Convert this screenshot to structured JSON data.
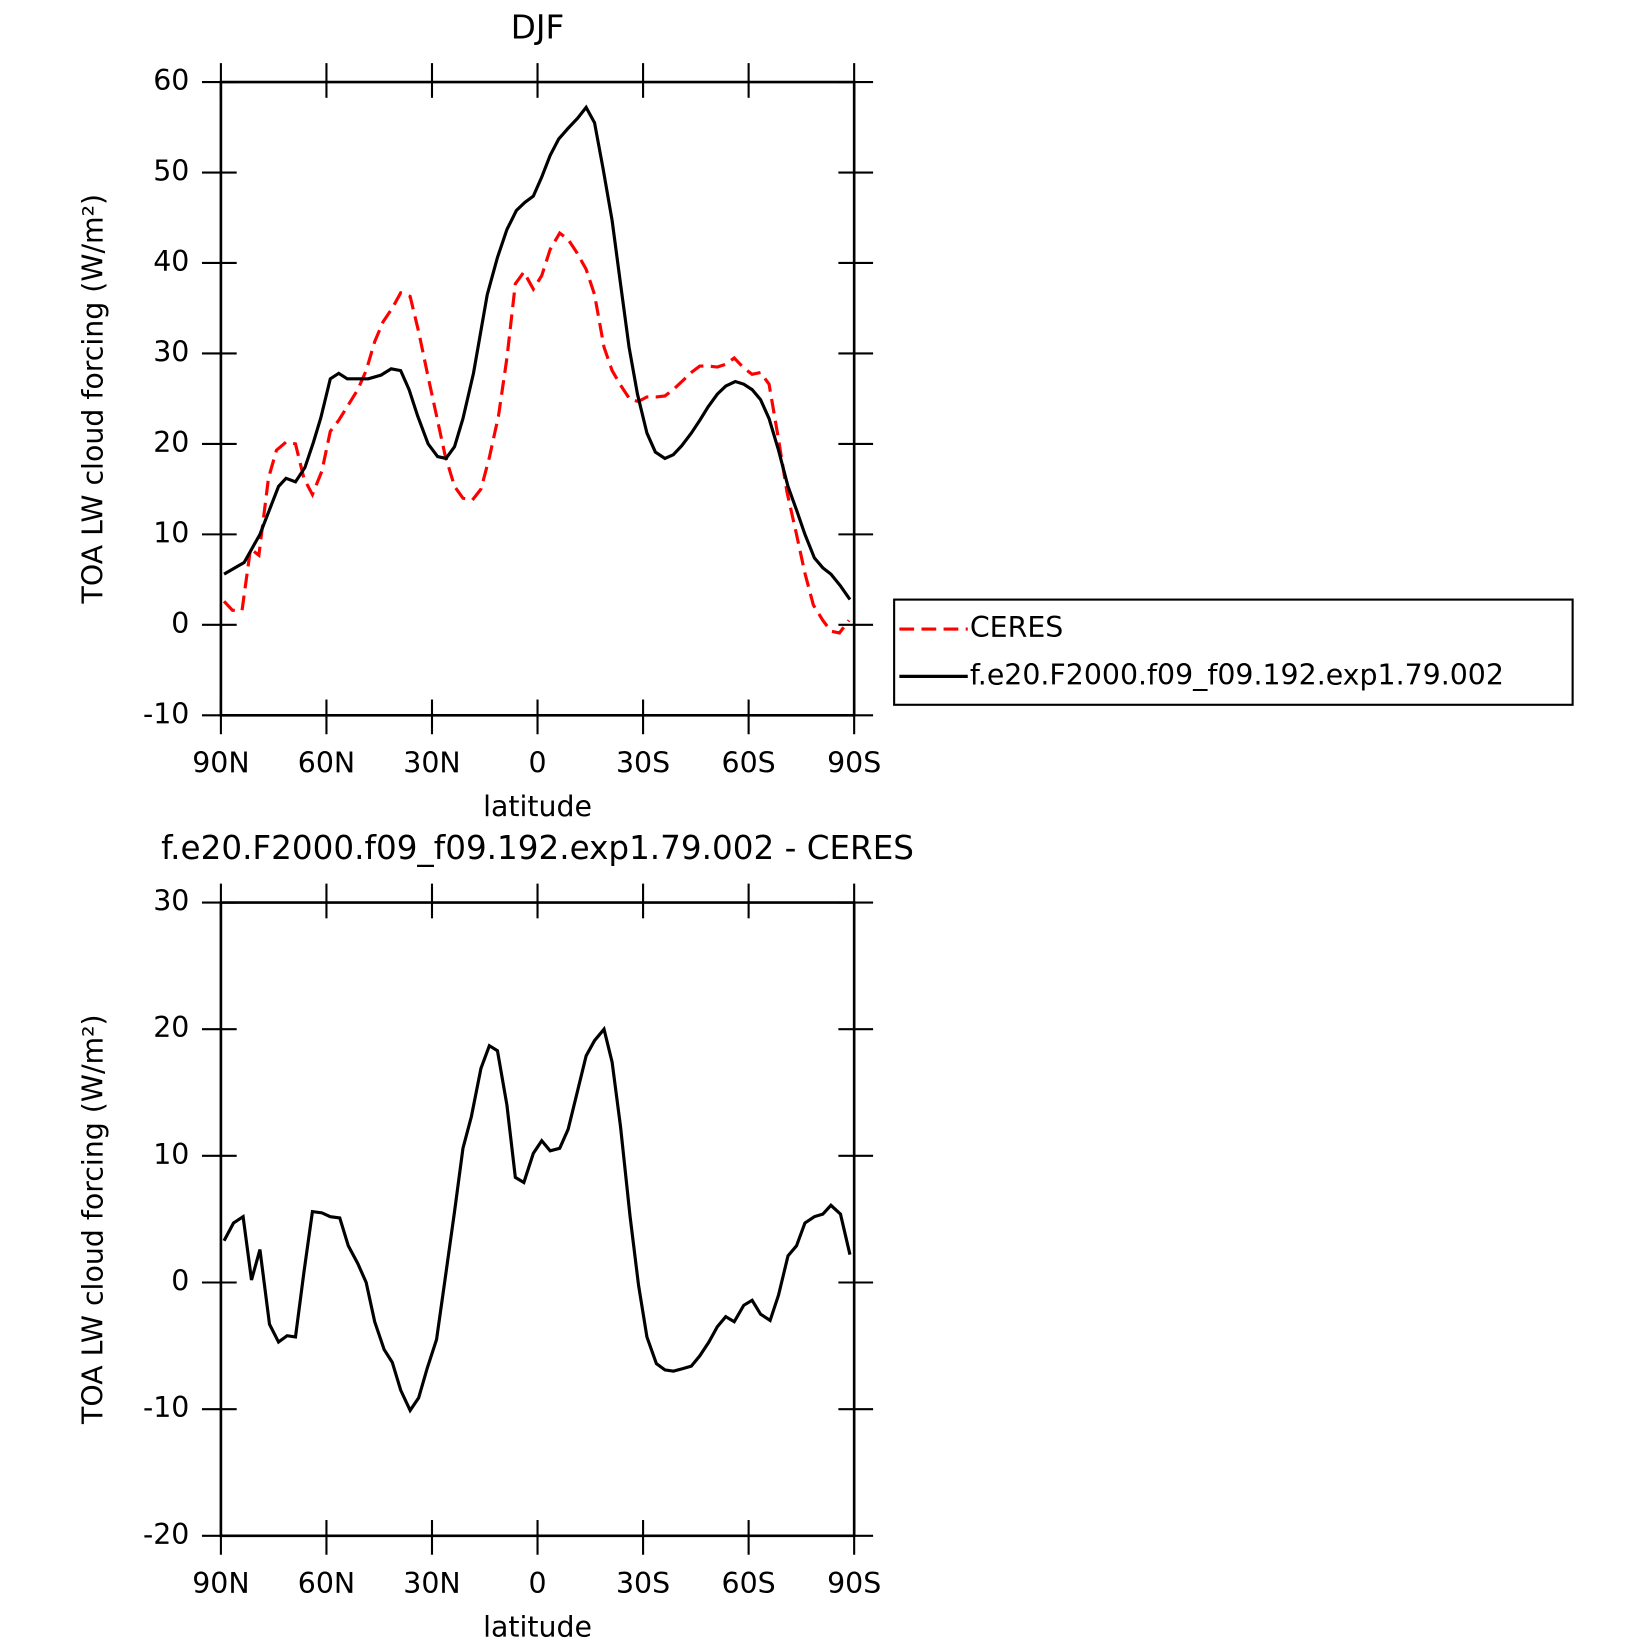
{
  "chart_data": [
    {
      "type": "line",
      "title": "DJF",
      "xlabel": "latitude",
      "ylabel": "TOA LW cloud forcing (W/m²)",
      "xlim": [
        90,
        -90
      ],
      "xticks": [
        {
          "value": 90,
          "label": "90N"
        },
        {
          "value": 60,
          "label": "60N"
        },
        {
          "value": 30,
          "label": "30N"
        },
        0,
        {
          "value": -30,
          "label": "30S"
        },
        {
          "value": -60,
          "label": "60S"
        },
        {
          "value": -90,
          "label": "90S"
        }
      ],
      "ylim": [
        -10,
        60
      ],
      "yticks": [
        -10,
        0,
        10,
        20,
        30,
        40,
        50,
        60
      ],
      "legend": "outside-right",
      "series": [
        {
          "name": "CERES",
          "color": "#ff0000",
          "line_style": "dashed",
          "x": [
            89.1,
            86.7,
            84.0,
            81.6,
            79.2,
            76.5,
            74.2,
            71.5,
            68.8,
            66.4,
            64.0,
            61.3,
            58.9,
            56.5,
            53.8,
            51.1,
            48.7,
            46.3,
            43.9,
            41.3,
            38.9,
            36.2,
            33.8,
            31.1,
            28.7,
            26.3,
            23.6,
            21.2,
            18.5,
            16.1,
            13.7,
            11.1,
            8.7,
            6.3,
            3.9,
            1.2,
            -1.2,
            -3.6,
            -6.3,
            -8.7,
            -11.1,
            -13.8,
            -16.2,
            -18.9,
            -21.2,
            -23.6,
            -26.3,
            -28.7,
            -31.1,
            -33.8,
            -36.2,
            -38.6,
            -41.3,
            -43.7,
            -46.1,
            -48.7,
            -51.1,
            -53.5,
            -55.9,
            -58.6,
            -61.0,
            -63.4,
            -65.8,
            -68.5,
            -70.9,
            -73.6,
            -76.0,
            -78.4,
            -81.1,
            -83.4,
            -85.8,
            -88.5
          ],
          "values": [
            2.6,
            1.6,
            1.6,
            8.4,
            7.7,
            16.2,
            19.3,
            20.2,
            20.0,
            16.2,
            14.4,
            17.0,
            21.4,
            22.6,
            24.3,
            26.0,
            28.1,
            31.3,
            33.5,
            35.0,
            36.7,
            36.3,
            32.4,
            27.4,
            23.1,
            18.8,
            15.3,
            14.0,
            13.8,
            15.0,
            18.5,
            23.1,
            29.5,
            37.7,
            39.0,
            37.1,
            38.6,
            41.5,
            43.3,
            42.6,
            41.2,
            39.3,
            36.5,
            30.7,
            28.1,
            26.5,
            24.9,
            24.7,
            25.2,
            25.2,
            25.3,
            26.0,
            27.0,
            27.9,
            28.6,
            28.6,
            28.5,
            28.8,
            29.5,
            28.4,
            27.7,
            27.9,
            26.6,
            20.5,
            14.7,
            10.0,
            5.7,
            2.2,
            0.5,
            -0.7,
            -0.9,
            0.5
          ]
        },
        {
          "name": "f.e20.F2000.f09_f09.192.exp1.79.002",
          "color": "#000000",
          "line_style": "solid",
          "x": [
            89.1,
            83.4,
            78.9,
            73.6,
            71.5,
            68.8,
            66.1,
            63.7,
            61.6,
            58.9,
            56.5,
            54.1,
            48.1,
            44.5,
            41.6,
            38.9,
            36.5,
            34.1,
            31.1,
            28.4,
            26.0,
            23.6,
            21.2,
            18.2,
            14.3,
            11.4,
            8.7,
            6.0,
            3.6,
            1.2,
            -1.2,
            -3.6,
            -6.0,
            -8.7,
            -11.4,
            -13.8,
            -16.2,
            -18.6,
            -21.2,
            -23.6,
            -26.0,
            -28.4,
            -31.1,
            -33.5,
            -36.2,
            -38.6,
            -41.0,
            -43.7,
            -46.1,
            -48.5,
            -51.1,
            -53.5,
            -56.2,
            -58.6,
            -61.0,
            -63.4,
            -65.8,
            -68.5,
            -71.2,
            -73.6,
            -76.0,
            -78.7,
            -81.1,
            -83.4,
            -86.1,
            -88.8
          ],
          "values": [
            5.6,
            6.9,
            10.0,
            15.3,
            16.2,
            15.8,
            17.4,
            20.2,
            22.9,
            27.2,
            27.8,
            27.2,
            27.2,
            27.6,
            28.3,
            28.1,
            26.0,
            23.1,
            20.0,
            18.6,
            18.4,
            19.7,
            22.8,
            27.8,
            36.5,
            40.6,
            43.7,
            45.8,
            46.7,
            47.4,
            49.5,
            51.9,
            53.7,
            54.9,
            56.0,
            57.2,
            55.5,
            50.5,
            44.7,
            37.7,
            30.7,
            25.5,
            21.2,
            19.1,
            18.4,
            18.8,
            19.8,
            21.2,
            22.6,
            24.1,
            25.5,
            26.4,
            26.9,
            26.6,
            26.0,
            24.9,
            22.8,
            19.3,
            15.3,
            12.7,
            10.0,
            7.4,
            6.3,
            5.6,
            4.3,
            2.8
          ]
        }
      ]
    },
    {
      "type": "line",
      "title": "f.e20.F2000.f09_f09.192.exp1.79.002 - CERES",
      "xlabel": "latitude",
      "ylabel": "TOA LW cloud forcing (W/m²)",
      "xlim": [
        90,
        -90
      ],
      "xticks": [
        {
          "value": 90,
          "label": "90N"
        },
        {
          "value": 60,
          "label": "60N"
        },
        {
          "value": 30,
          "label": "30N"
        },
        0,
        {
          "value": -30,
          "label": "30S"
        },
        {
          "value": -60,
          "label": "60S"
        },
        {
          "value": -90,
          "label": "90S"
        }
      ],
      "ylim": [
        -20,
        30
      ],
      "yticks": [
        -20,
        -10,
        0,
        10,
        20,
        30
      ],
      "color": "#000000",
      "x": [
        89.1,
        86.4,
        83.7,
        81.3,
        78.9,
        76.2,
        73.6,
        71.2,
        68.8,
        66.4,
        64.0,
        61.3,
        58.9,
        56.2,
        53.8,
        51.1,
        48.7,
        46.3,
        43.6,
        41.3,
        38.9,
        36.2,
        33.8,
        31.4,
        28.7,
        26.3,
        23.6,
        21.2,
        18.8,
        16.1,
        13.7,
        11.4,
        8.7,
        6.3,
        3.9,
        1.2,
        -1.2,
        -3.6,
        -6.3,
        -8.7,
        -11.1,
        -13.8,
        -16.2,
        -18.9,
        -21.2,
        -23.6,
        -26.3,
        -28.7,
        -31.1,
        -33.8,
        -36.2,
        -38.6,
        -41.3,
        -43.7,
        -46.1,
        -48.7,
        -51.1,
        -53.5,
        -55.9,
        -58.6,
        -61.0,
        -63.4,
        -66.1,
        -68.5,
        -71.2,
        -73.6,
        -76.0,
        -78.7,
        -81.1,
        -83.4,
        -86.1,
        -88.8
      ],
      "values": [
        3.3,
        4.7,
        5.2,
        0.2,
        2.6,
        -3.3,
        -4.7,
        -4.2,
        -4.3,
        0.8,
        5.6,
        5.5,
        5.2,
        5.1,
        2.9,
        1.5,
        0.0,
        -3.1,
        -5.3,
        -6.3,
        -8.5,
        -10.1,
        -9.1,
        -6.8,
        -4.5,
        0.2,
        5.6,
        10.6,
        13.1,
        16.9,
        18.7,
        18.3,
        14.0,
        8.3,
        7.9,
        10.2,
        11.2,
        10.4,
        10.6,
        12.1,
        14.8,
        17.9,
        19.1,
        20.0,
        17.4,
        12.3,
        5.2,
        -0.2,
        -4.3,
        -6.4,
        -6.9,
        -7.0,
        -6.8,
        -6.6,
        -5.8,
        -4.7,
        -3.5,
        -2.7,
        -3.1,
        -1.8,
        -1.4,
        -2.5,
        -3.0,
        -1.0,
        2.1,
        2.9,
        4.7,
        5.2,
        5.4,
        6.1,
        5.4,
        2.2
      ]
    }
  ]
}
